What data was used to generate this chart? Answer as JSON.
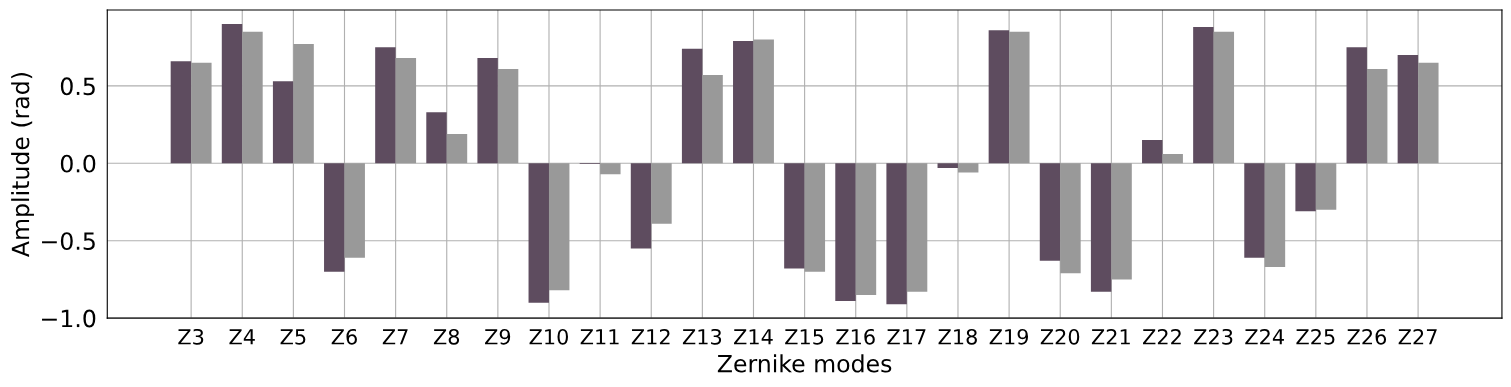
{
  "chart_data": {
    "type": "bar",
    "xlabel": "Zernike modes",
    "ylabel": "Amplitude (rad)",
    "categories": [
      "Z3",
      "Z4",
      "Z5",
      "Z6",
      "Z7",
      "Z8",
      "Z9",
      "Z10",
      "Z11",
      "Z12",
      "Z13",
      "Z14",
      "Z15",
      "Z16",
      "Z17",
      "Z18",
      "Z19",
      "Z20",
      "Z21",
      "Z22",
      "Z23",
      "Z24",
      "Z25",
      "Z26",
      "Z27"
    ],
    "series": [
      {
        "color": "#5e4c5f",
        "values": [
          0.66,
          0.9,
          0.53,
          -0.7,
          0.75,
          0.33,
          0.68,
          -0.9,
          -0.005,
          -0.55,
          0.74,
          0.79,
          -0.68,
          -0.89,
          -0.91,
          -0.03,
          0.86,
          -0.63,
          -0.83,
          0.15,
          0.88,
          -0.61,
          -0.31,
          0.75,
          0.7
        ]
      },
      {
        "color": "#999999",
        "values": [
          0.65,
          0.85,
          0.77,
          -0.61,
          0.68,
          0.19,
          0.61,
          -0.82,
          -0.07,
          -0.39,
          0.57,
          0.8,
          -0.7,
          -0.85,
          -0.83,
          -0.06,
          0.85,
          -0.71,
          -0.75,
          0.06,
          0.85,
          -0.67,
          -0.3,
          0.61,
          0.65
        ]
      }
    ],
    "ylim": [
      -1.0,
      0.99
    ],
    "yticks": [
      {
        "value": -1.0,
        "label": "−1.0"
      },
      {
        "value": -0.5,
        "label": "−0.5"
      },
      {
        "value": 0.0,
        "label": "0.0"
      },
      {
        "value": 0.5,
        "label": "0.5"
      }
    ],
    "grid": true,
    "legend": false
  }
}
